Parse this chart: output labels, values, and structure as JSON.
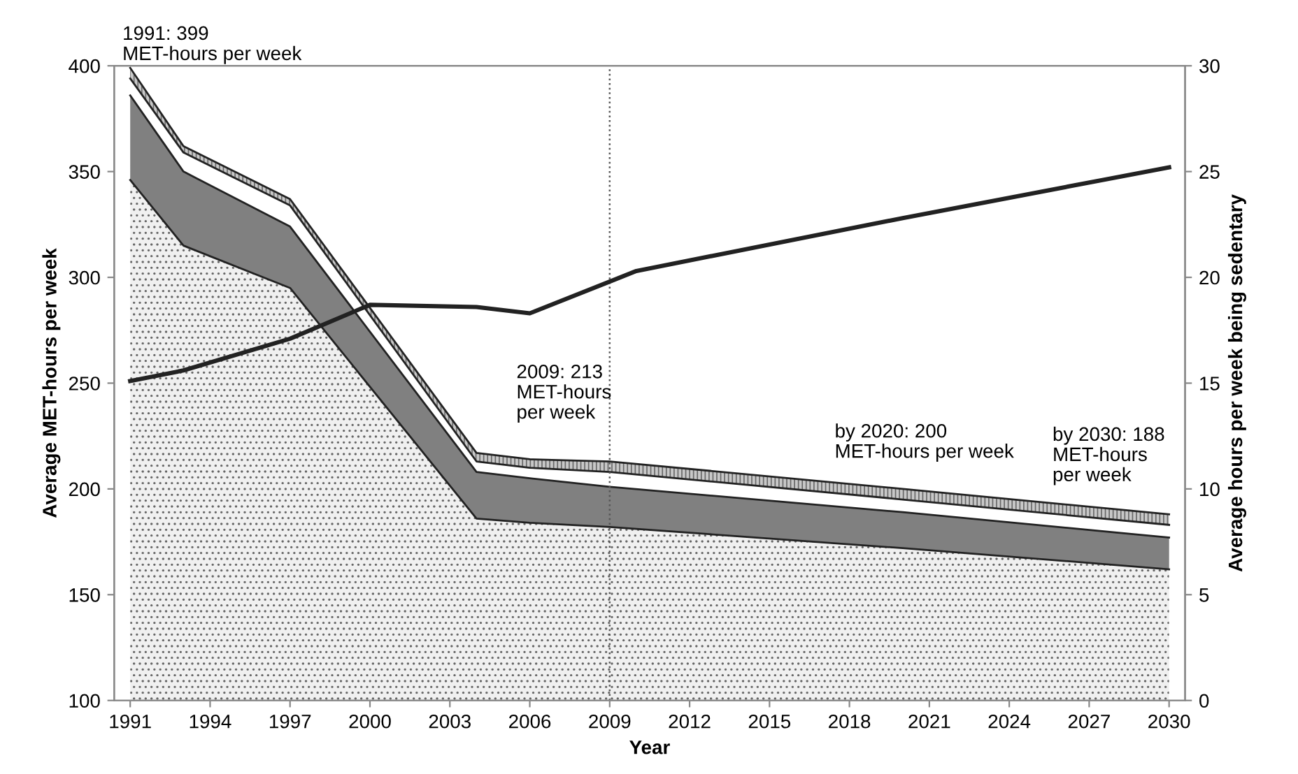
{
  "chart_data": {
    "type": "area",
    "x": [
      1991,
      1993,
      1997,
      2004,
      2006,
      2009,
      2020,
      2030
    ],
    "xlabel": "Year",
    "ylabel": "Average MET-hours per week",
    "y2label": "Average hours per week being sedentary",
    "series": [
      {
        "color": "#f0f0f0",
        "values": [
          346,
          315,
          295,
          186,
          184,
          182,
          172,
          162
        ]
      },
      {
        "color": "#808080",
        "values": [
          386,
          350,
          324,
          208,
          205,
          201,
          189,
          177
        ]
      },
      {
        "color": "#ffffff",
        "values": [
          394,
          359,
          334,
          213,
          210,
          208,
          195,
          183
        ]
      },
      {
        "color": "#c8c8c8",
        "values": [
          399,
          362,
          337,
          217,
          214,
          213,
          200,
          188
        ]
      },
      {
        "type": "line",
        "axis": "y2",
        "color": "#222222",
        "x": [
          1991,
          1993,
          1997,
          2000,
          2004,
          2006,
          2009,
          2010,
          2020,
          2030
        ],
        "values": [
          15.1,
          15.6,
          17.1,
          18.7,
          18.6,
          18.3,
          19.8,
          20.3,
          22.8,
          25.2
        ]
      }
    ],
    "xlim": [
      1990.4,
      2030.6
    ],
    "xticks": [
      1991,
      1994,
      1997,
      2000,
      2003,
      2006,
      2009,
      2012,
      2015,
      2018,
      2021,
      2024,
      2027,
      2030
    ],
    "ylim": [
      100,
      400
    ],
    "yticks": [
      100,
      150,
      200,
      250,
      300,
      350,
      400
    ],
    "y2lim": [
      0,
      30
    ],
    "y2ticks": [
      0,
      5,
      10,
      15,
      20,
      25,
      30
    ],
    "ref_lines": [
      {
        "axis": "x",
        "value": 2009,
        "color": "#555555",
        "line_style": "dotted"
      }
    ],
    "annotations": [
      {
        "text": "1991: 399\nMET-hours per week",
        "x": 1991,
        "y": 399
      },
      {
        "text": "2009: 213\nMET-hours\nper week",
        "x": 2009,
        "y": 213
      },
      {
        "text": "by 2020: 200\nMET-hours per week",
        "x": 2020,
        "y": 200
      },
      {
        "text": "by 2030: 188\nMET-hours\nper week",
        "x": 2030,
        "y": 188
      }
    ],
    "grid": false,
    "legend": false
  }
}
